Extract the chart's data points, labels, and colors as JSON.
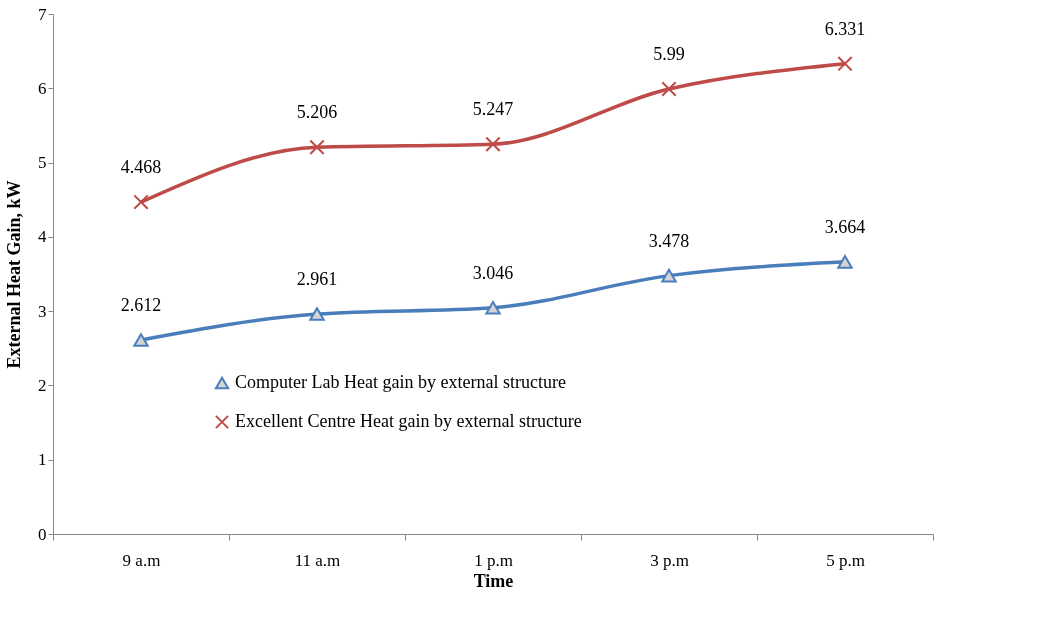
{
  "chart_data": {
    "type": "line",
    "xlabel": "Time",
    "ylabel": "External Heat Gain, kW",
    "categories": [
      "9 a.m",
      "11 a.m",
      "1 p.m",
      "3 p.m",
      "5 p.m"
    ],
    "series": [
      {
        "name": "Computer Lab Heat gain by external structure",
        "color": "#4a7ebb",
        "marker": "triangle",
        "values": [
          2.612,
          2.961,
          3.046,
          3.478,
          3.664
        ]
      },
      {
        "name": "Excellent Centre Heat gain by external structure",
        "color": "#be4b48",
        "marker": "cross",
        "values": [
          4.468,
          5.206,
          5.247,
          5.99,
          6.331
        ]
      }
    ],
    "ylim": [
      0,
      7
    ],
    "yticks": [
      0,
      1,
      2,
      3,
      4,
      5,
      6,
      7
    ],
    "grid": false,
    "legend": "bottom",
    "data_labels": true,
    "line_style": "solid"
  }
}
